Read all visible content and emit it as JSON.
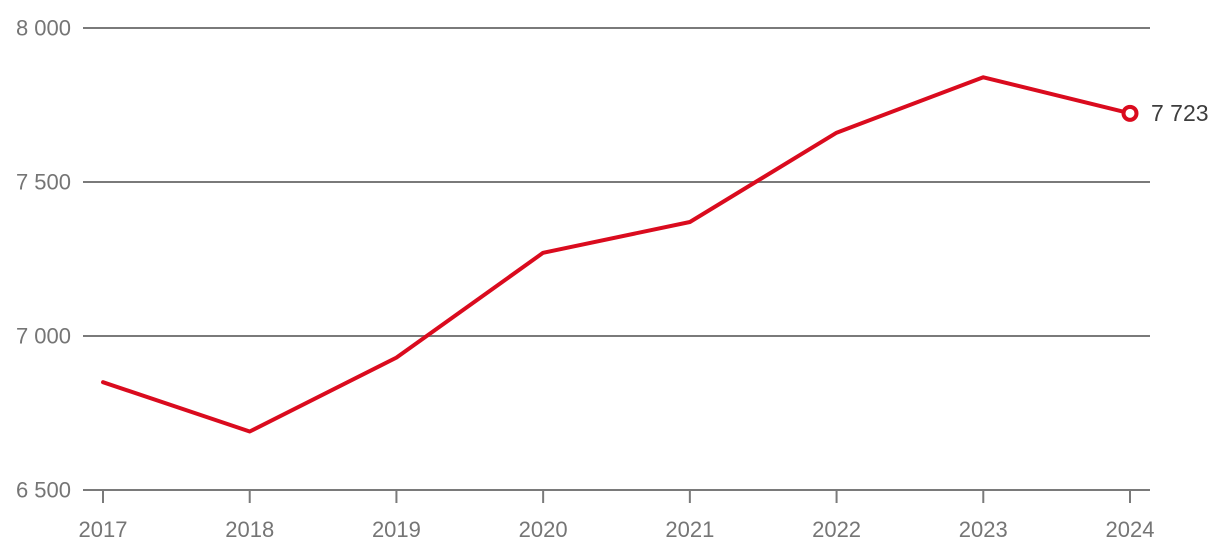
{
  "chart_data": {
    "type": "line",
    "title": "",
    "categories": [
      "2017",
      "2018",
      "2019",
      "2020",
      "2021",
      "2022",
      "2023",
      "2024"
    ],
    "series": [
      {
        "name": "value",
        "values": [
          6850,
          6690,
          6930,
          7270,
          7370,
          7660,
          7840,
          7723
        ]
      }
    ],
    "xlabel": "",
    "ylabel": "",
    "ylim": [
      6500,
      8000
    ],
    "yticks": [
      6500,
      7000,
      7500,
      8000
    ],
    "ytick_labels": [
      "6 500",
      "7 000",
      "7 500",
      "8 000"
    ],
    "xtick_labels": [
      "2017",
      "2018",
      "2019",
      "2020",
      "2021",
      "2022",
      "2023",
      "2024"
    ],
    "grid": true,
    "legend_position": "none",
    "end_point_label": "7 723",
    "end_point_marker": "open-circle",
    "colors": {
      "line": "#da0b1e",
      "grid": "#7a7a7a",
      "tick_text": "#757575",
      "end_label_text": "#3d3d3d",
      "marker_fill": "#ffffff",
      "background": "#ffffff"
    }
  }
}
